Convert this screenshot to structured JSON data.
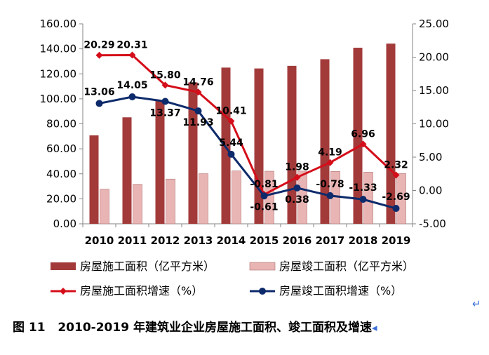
{
  "chart_data": {
    "type": "bar+line",
    "categories": [
      "2010",
      "2011",
      "2012",
      "2013",
      "2014",
      "2015",
      "2016",
      "2017",
      "2018",
      "2019"
    ],
    "y_left": {
      "min": 0,
      "max": 160,
      "step": 20,
      "tick_labels": [
        "0.00",
        "20.00",
        "40.00",
        "60.00",
        "80.00",
        "100.00",
        "120.00",
        "140.00",
        "160.00"
      ]
    },
    "y_right": {
      "min": -5,
      "max": 25,
      "step": 5,
      "tick_labels": [
        "-5.00",
        "0.00",
        "5.00",
        "10.00",
        "15.00",
        "20.00",
        "25.00"
      ]
    },
    "series": [
      {
        "name": "房屋施工面积（亿平方米）",
        "type": "bar",
        "axis": "left",
        "color": "#a33a3a",
        "values": [
          70.8,
          85.2,
          98.6,
          113.2,
          125.0,
          124.3,
          126.4,
          131.7,
          140.9,
          144.2
        ]
      },
      {
        "name": "房屋竣工面积（亿平方米）",
        "type": "bar",
        "axis": "left",
        "color": "#e8b4b4",
        "values": [
          27.7,
          31.6,
          35.8,
          40.1,
          42.3,
          42.1,
          42.2,
          41.9,
          41.3,
          40.2
        ]
      },
      {
        "name": "房屋施工面积增速（%）",
        "type": "line",
        "axis": "right",
        "color": "#d40e1a",
        "values": [
          20.29,
          20.31,
          15.8,
          14.76,
          10.41,
          -0.61,
          1.98,
          4.19,
          6.96,
          2.32
        ],
        "labels": [
          "20.29",
          "20.31",
          "15.80",
          "14.76",
          "10.41",
          "-0.61",
          "1.98",
          "4.19",
          "6.96",
          "2.32"
        ]
      },
      {
        "name": "房屋竣工面积增速（%）",
        "type": "line",
        "axis": "right",
        "color": "#0d2a6b",
        "values": [
          13.06,
          14.05,
          13.37,
          11.93,
          5.44,
          -0.81,
          0.38,
          -0.78,
          -1.33,
          -2.69
        ],
        "labels": [
          "13.06",
          "14.05",
          "13.37",
          "11.93",
          "5.44",
          "-0.81",
          "0.38",
          "-0.78",
          "-1.33",
          "-2.69"
        ]
      }
    ]
  },
  "caption": {
    "prefix": "图 11",
    "text": "2010-2019 年建筑业企业房屋施工面积、竣工面积及增速",
    "mark_end": "↵",
    "mark_arrow": "◂"
  }
}
